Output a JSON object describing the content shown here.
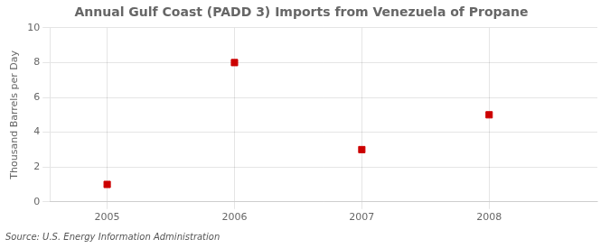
{
  "chart_data": {
    "type": "scatter",
    "title": "Annual Gulf Coast (PADD 3) Imports from Venezuela of Propane",
    "y_label": "Thousand Barrels per Day",
    "annotations": [
      "Source: U.S. Energy Information Administration"
    ],
    "x": [
      2005,
      2006,
      2007,
      2008
    ],
    "values": [
      1,
      8,
      3,
      5
    ],
    "color": "#cc0000",
    "marker": "square",
    "xlim": [
      2004.55,
      2008.85
    ],
    "xticks": [
      2005,
      2006,
      2007,
      2008
    ],
    "ylim": [
      0,
      10
    ],
    "yticks": [
      0,
      2,
      4,
      6,
      8,
      10
    ],
    "grid": true
  }
}
